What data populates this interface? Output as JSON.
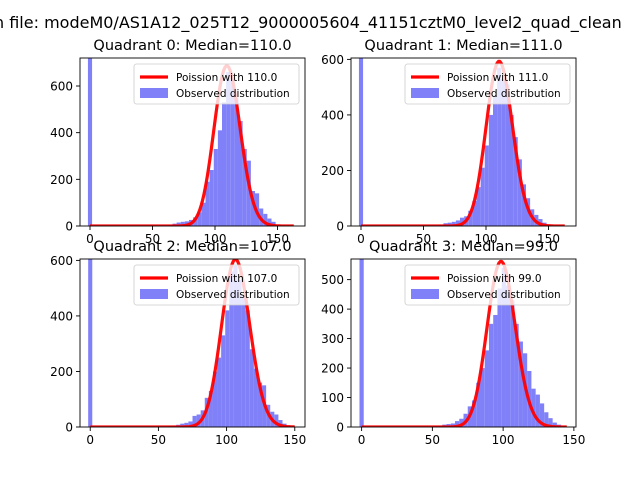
{
  "suptitle": "n file: modeM0/AS1A12_025T12_9000005604_41151cztM0_level2_quad_clean",
  "legend_labels": {
    "observed": "Observed distribution"
  },
  "colors": {
    "hist": "#8080f8",
    "poisson": "#ff0000"
  },
  "chart_data": [
    {
      "type": "bar",
      "title": "Quadrant 0: Median=110.0",
      "median": 110.0,
      "poisson_label": "Poission with 110.0",
      "legend_position": "upper right",
      "xlim": [
        -8,
        172
      ],
      "ylim": [
        0,
        720
      ],
      "xticks": [
        0,
        50,
        100,
        150
      ],
      "yticks": [
        0,
        200,
        400,
        600
      ],
      "bin_width": 3.3,
      "spike": {
        "x": 0,
        "value": 720
      },
      "bins": [
        [
          59.4,
          2
        ],
        [
          62.7,
          5
        ],
        [
          66.0,
          10
        ],
        [
          69.3,
          15
        ],
        [
          72.6,
          18
        ],
        [
          75.9,
          20
        ],
        [
          79.2,
          26
        ],
        [
          82.5,
          37
        ],
        [
          85.8,
          58
        ],
        [
          89.1,
          100
        ],
        [
          92.4,
          190
        ],
        [
          95.7,
          240
        ],
        [
          99.0,
          330
        ],
        [
          102.3,
          410
        ],
        [
          105.6,
          530
        ],
        [
          108.9,
          660
        ],
        [
          112.2,
          625
        ],
        [
          115.5,
          550
        ],
        [
          118.8,
          450
        ],
        [
          122.1,
          330
        ],
        [
          125.4,
          280
        ],
        [
          128.7,
          150
        ],
        [
          132.0,
          140
        ],
        [
          135.3,
          75
        ],
        [
          138.6,
          52
        ],
        [
          141.9,
          32
        ],
        [
          145.2,
          18
        ],
        [
          148.5,
          6
        ],
        [
          151.8,
          3
        ]
      ],
      "curve_range": [
        0,
        163
      ]
    },
    {
      "type": "bar",
      "title": "Quadrant 1: Median=111.0",
      "median": 111.0,
      "poisson_label": "Poission with 111.0",
      "legend_position": "upper right",
      "xlim": [
        -8,
        172
      ],
      "ylim": [
        0,
        605
      ],
      "xticks": [
        0,
        50,
        100,
        150
      ],
      "yticks": [
        0,
        200,
        400,
        600
      ],
      "bin_width": 3.3,
      "spike": {
        "x": 0,
        "value": 605
      },
      "bins": [
        [
          62.7,
          5
        ],
        [
          66.0,
          10
        ],
        [
          69.3,
          12
        ],
        [
          72.6,
          15
        ],
        [
          75.9,
          20
        ],
        [
          79.2,
          30
        ],
        [
          82.5,
          35
        ],
        [
          85.8,
          55
        ],
        [
          89.1,
          90
        ],
        [
          92.4,
          140
        ],
        [
          95.7,
          210
        ],
        [
          99.0,
          290
        ],
        [
          102.3,
          400
        ],
        [
          105.6,
          470
        ],
        [
          108.9,
          570
        ],
        [
          112.2,
          530
        ],
        [
          115.5,
          510
        ],
        [
          118.8,
          400
        ],
        [
          122.1,
          320
        ],
        [
          125.4,
          240
        ],
        [
          128.7,
          150
        ],
        [
          132.0,
          100
        ],
        [
          135.3,
          60
        ],
        [
          138.6,
          40
        ],
        [
          141.9,
          25
        ],
        [
          145.2,
          12
        ],
        [
          148.5,
          5
        ]
      ],
      "curve_range": [
        0,
        163
      ]
    },
    {
      "type": "bar",
      "title": "Quadrant 2: Median=107.0",
      "median": 107.0,
      "poisson_label": "Poission with 107.0",
      "legend_position": "upper right",
      "xlim": [
        -7.5,
        157.5
      ],
      "ylim": [
        0,
        605
      ],
      "xticks": [
        0,
        50,
        100,
        150
      ],
      "yticks": [
        0,
        200,
        400,
        600
      ],
      "bin_width": 3.0,
      "spike": {
        "x": 0,
        "value": 605
      },
      "bins": [
        [
          57,
          3
        ],
        [
          60,
          5
        ],
        [
          63,
          8
        ],
        [
          66,
          12
        ],
        [
          69,
          15
        ],
        [
          72,
          20
        ],
        [
          75,
          40
        ],
        [
          78,
          45
        ],
        [
          81,
          60
        ],
        [
          84,
          105
        ],
        [
          87,
          130
        ],
        [
          90,
          200
        ],
        [
          93,
          250
        ],
        [
          96,
          330
        ],
        [
          99,
          420
        ],
        [
          102,
          560
        ],
        [
          105,
          580
        ],
        [
          108,
          530
        ],
        [
          111,
          470
        ],
        [
          114,
          420
        ],
        [
          117,
          280
        ],
        [
          120,
          210
        ],
        [
          123,
          160
        ],
        [
          126,
          150
        ],
        [
          129,
          80
        ],
        [
          132,
          55
        ],
        [
          135,
          45
        ],
        [
          138,
          25
        ],
        [
          141,
          12
        ],
        [
          144,
          6
        ],
        [
          147,
          3
        ]
      ],
      "curve_range": [
        0,
        150
      ]
    },
    {
      "type": "bar",
      "title": "Quadrant 3: Median=99.0",
      "median": 99.0,
      "poisson_label": "Poission with 99.0",
      "legend_position": "upper right",
      "xlim": [
        -7.5,
        151.5
      ],
      "ylim": [
        0,
        570
      ],
      "xticks": [
        0,
        50,
        100,
        150
      ],
      "yticks": [
        0,
        100,
        200,
        300,
        400,
        500
      ],
      "bin_width": 3.0,
      "spike": {
        "x": 0,
        "value": 570
      },
      "bins": [
        [
          51,
          3
        ],
        [
          54,
          5
        ],
        [
          57,
          8
        ],
        [
          60,
          10
        ],
        [
          63,
          12
        ],
        [
          66,
          20
        ],
        [
          69,
          28
        ],
        [
          72,
          45
        ],
        [
          75,
          70
        ],
        [
          78,
          90
        ],
        [
          81,
          150
        ],
        [
          84,
          200
        ],
        [
          87,
          260
        ],
        [
          90,
          350
        ],
        [
          93,
          380
        ],
        [
          96,
          470
        ],
        [
          99,
          540
        ],
        [
          102,
          480
        ],
        [
          105,
          430
        ],
        [
          108,
          350
        ],
        [
          111,
          290
        ],
        [
          114,
          250
        ],
        [
          117,
          190
        ],
        [
          120,
          130
        ],
        [
          123,
          110
        ],
        [
          126,
          80
        ],
        [
          129,
          50
        ],
        [
          132,
          30
        ],
        [
          135,
          15
        ],
        [
          138,
          8
        ],
        [
          141,
          3
        ]
      ],
      "curve_range": [
        0,
        145
      ]
    }
  ]
}
